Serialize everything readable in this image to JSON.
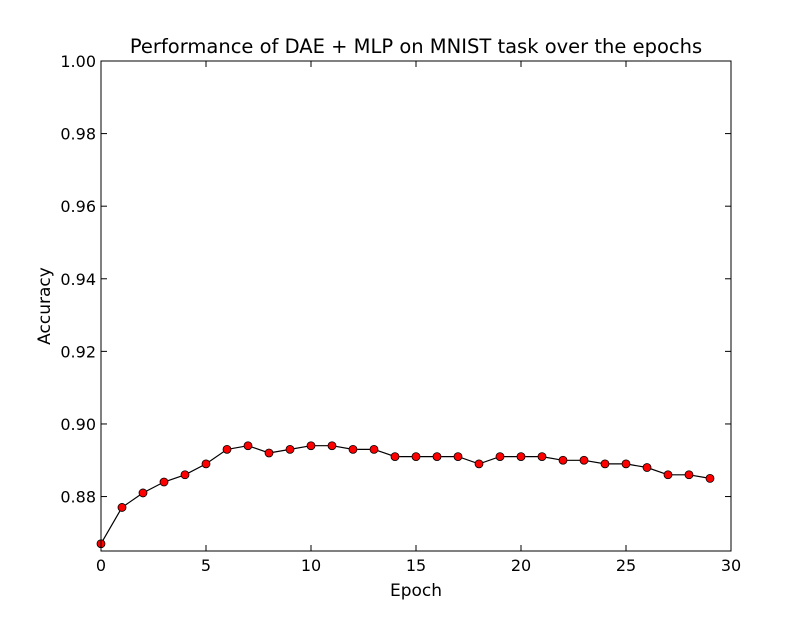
{
  "chart_data": {
    "type": "line",
    "title": "Performance of DAE + MLP on MNIST task over the epochs",
    "xlabel": "Epoch",
    "ylabel": "Accuracy",
    "xlim": [
      0,
      30
    ],
    "ylim": [
      0.865,
      1.0
    ],
    "xticks": [
      "0",
      "5",
      "10",
      "15",
      "20",
      "25",
      "30"
    ],
    "yticks": [
      "0.88",
      "0.90",
      "0.92",
      "0.94",
      "0.96",
      "0.98",
      "1.00"
    ],
    "grid": false,
    "legend": "none",
    "series": [
      {
        "line_color": "#000000",
        "marker_color": "#ff0000",
        "marker": "circle",
        "x": [
          0,
          1,
          2,
          3,
          4,
          5,
          6,
          7,
          8,
          9,
          10,
          11,
          12,
          13,
          14,
          15,
          16,
          17,
          18,
          19,
          20,
          21,
          22,
          23,
          24,
          25,
          26,
          27,
          28,
          29
        ],
        "values": [
          0.867,
          0.877,
          0.881,
          0.884,
          0.886,
          0.889,
          0.893,
          0.894,
          0.892,
          0.893,
          0.894,
          0.894,
          0.893,
          0.893,
          0.891,
          0.891,
          0.891,
          0.891,
          0.889,
          0.891,
          0.891,
          0.891,
          0.89,
          0.89,
          0.889,
          0.889,
          0.888,
          0.886,
          0.886,
          0.885
        ]
      }
    ]
  }
}
